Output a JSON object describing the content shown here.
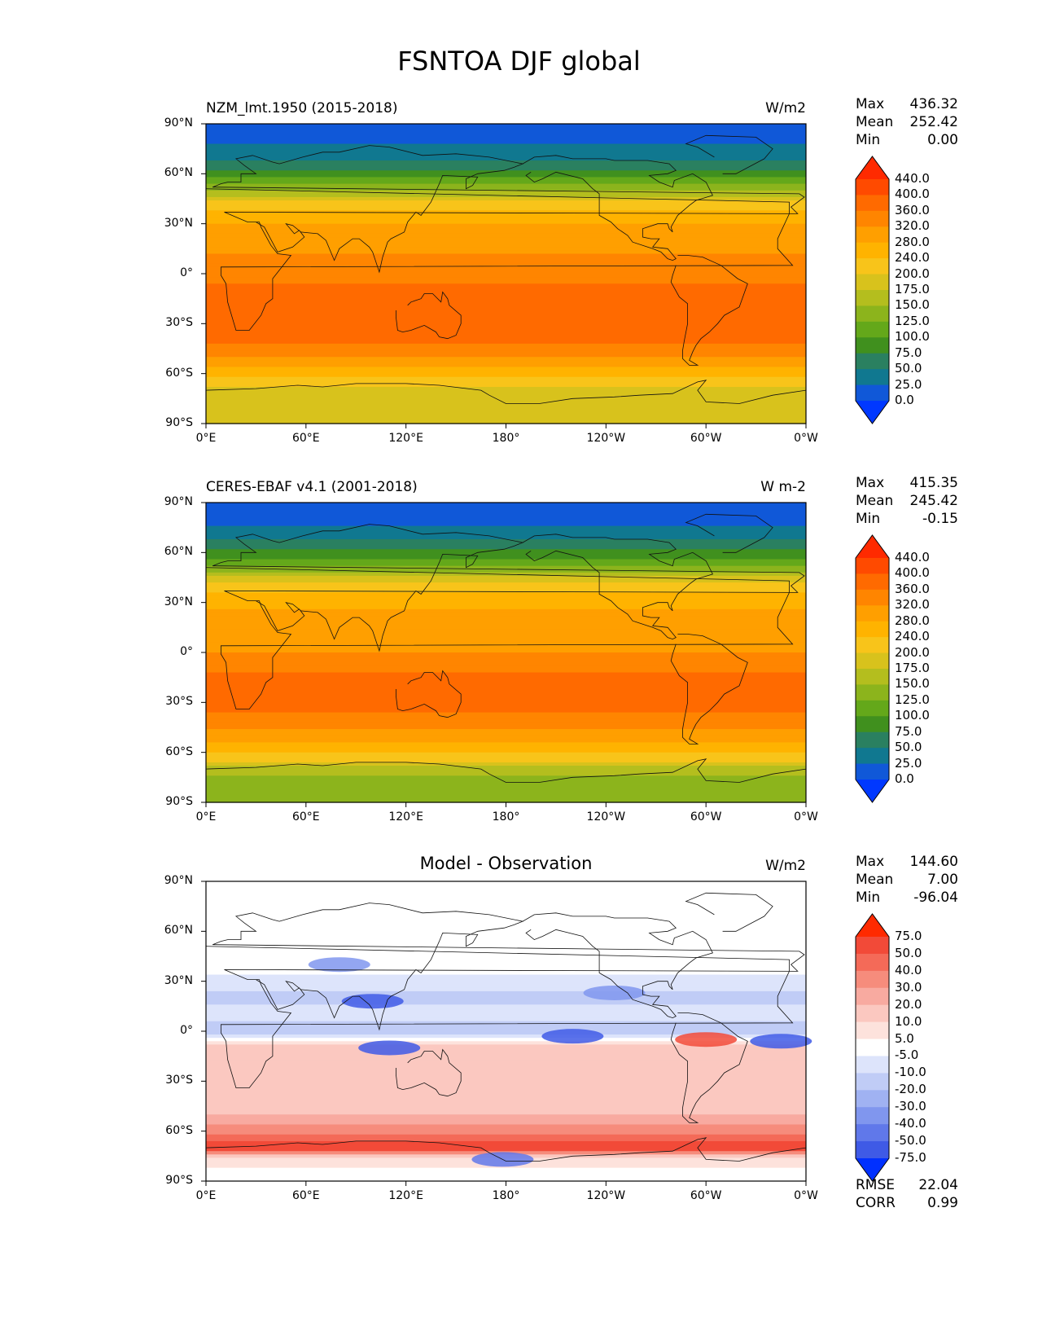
{
  "figure_title": "FSNTOA DJF global",
  "chart_data": [
    {
      "type": "heatmap",
      "panel": "test",
      "title": "NZM_lmt.1950 (2015-2018)",
      "units": "W/m2",
      "x_ticks": [
        "0°E",
        "60°E",
        "120°E",
        "180°",
        "120°W",
        "60°W",
        "0°W"
      ],
      "y_ticks": [
        "90°N",
        "60°N",
        "30°N",
        "0°",
        "30°S",
        "60°S",
        "90°S"
      ],
      "stats": {
        "max_label": "Max",
        "max": "436.32",
        "mean_label": "Mean",
        "mean": "252.42",
        "min_label": "Min",
        "min": "0.00"
      },
      "levels": [
        "440.0",
        "400.0",
        "360.0",
        "320.0",
        "280.0",
        "240.0",
        "200.0",
        "175.0",
        "150.0",
        "125.0",
        "100.0",
        "75.0",
        "50.0",
        "25.0",
        "0.0"
      ],
      "colors": [
        "#ff2a00",
        "#ff4a00",
        "#ff6a00",
        "#ff8500",
        "#ff9f00",
        "#ffb300",
        "#f8c41a",
        "#d8c21c",
        "#b4be1e",
        "#8cb41c",
        "#64a81a",
        "#40901e",
        "#2a8060",
        "#107890",
        "#1058d8",
        "#0038ff"
      ],
      "lat_profile": [
        [
          90,
          0
        ],
        [
          80,
          20
        ],
        [
          70,
          45
        ],
        [
          60,
          85
        ],
        [
          50,
          150
        ],
        [
          40,
          230
        ],
        [
          30,
          280
        ],
        [
          20,
          305
        ],
        [
          10,
          325
        ],
        [
          0,
          345
        ],
        [
          -10,
          368
        ],
        [
          -20,
          385
        ],
        [
          -30,
          390
        ],
        [
          -40,
          365
        ],
        [
          -50,
          320
        ],
        [
          -60,
          250
        ],
        [
          -70,
          190
        ],
        [
          -80,
          180
        ],
        [
          -90,
          178
        ]
      ]
    },
    {
      "type": "heatmap",
      "panel": "reference",
      "title": "CERES-EBAF v4.1 (2001-2018)",
      "units": "W m-2",
      "x_ticks": [
        "0°E",
        "60°E",
        "120°E",
        "180°",
        "120°W",
        "60°W",
        "0°W"
      ],
      "y_ticks": [
        "90°N",
        "60°N",
        "30°N",
        "0°",
        "30°S",
        "60°S",
        "90°S"
      ],
      "stats": {
        "max_label": "Max",
        "max": "415.35",
        "mean_label": "Mean",
        "mean": "245.42",
        "min_label": "Min",
        "min": "-0.15"
      },
      "levels": [
        "440.0",
        "400.0",
        "360.0",
        "320.0",
        "280.0",
        "240.0",
        "200.0",
        "175.0",
        "150.0",
        "125.0",
        "100.0",
        "75.0",
        "50.0",
        "25.0",
        "0.0"
      ],
      "colors": [
        "#ff2a00",
        "#ff4a00",
        "#ff6a00",
        "#ff8500",
        "#ff9f00",
        "#ffb300",
        "#f8c41a",
        "#d8c21c",
        "#b4be1e",
        "#8cb41c",
        "#64a81a",
        "#40901e",
        "#2a8060",
        "#107890",
        "#1058d8",
        "#0038ff"
      ],
      "lat_profile": [
        [
          90,
          0
        ],
        [
          80,
          18
        ],
        [
          70,
          40
        ],
        [
          60,
          80
        ],
        [
          50,
          140
        ],
        [
          40,
          215
        ],
        [
          30,
          270
        ],
        [
          20,
          290
        ],
        [
          10,
          300
        ],
        [
          0,
          320
        ],
        [
          -10,
          355
        ],
        [
          -20,
          372
        ],
        [
          -30,
          375
        ],
        [
          -40,
          350
        ],
        [
          -50,
          300
        ],
        [
          -60,
          240
        ],
        [
          -70,
          160
        ],
        [
          -80,
          135
        ],
        [
          -90,
          130
        ]
      ]
    },
    {
      "type": "heatmap",
      "panel": "difference",
      "title": "Model - Observation",
      "units": "W/m2",
      "x_ticks": [
        "0°E",
        "60°E",
        "120°E",
        "180°",
        "120°W",
        "60°W",
        "0°W"
      ],
      "y_ticks": [
        "90°N",
        "60°N",
        "30°N",
        "0°",
        "30°S",
        "60°S",
        "90°S"
      ],
      "stats": {
        "max_label": "Max",
        "max": "144.60",
        "mean_label": "Mean",
        "mean": "7.00",
        "min_label": "Min",
        "min": "-96.04"
      },
      "levels": [
        "75.0",
        "50.0",
        "40.0",
        "30.0",
        "20.0",
        "10.0",
        "5.0",
        "-5.0",
        "-10.0",
        "-20.0",
        "-30.0",
        "-40.0",
        "-50.0",
        "-75.0"
      ],
      "colors": [
        "#ff2a00",
        "#f24a38",
        "#f46a58",
        "#f68c7c",
        "#f8aaa0",
        "#fbc8c0",
        "#fde2dc",
        "#ffffff",
        "#dde4fb",
        "#c0ccf6",
        "#a0b2f2",
        "#8096ee",
        "#6078ea",
        "#3f5ae6",
        "#0030ff"
      ],
      "lat_profile": [
        [
          90,
          0
        ],
        [
          60,
          2
        ],
        [
          45,
          4
        ],
        [
          30,
          -8
        ],
        [
          20,
          -12
        ],
        [
          10,
          -6
        ],
        [
          0,
          -15
        ],
        [
          -10,
          18
        ],
        [
          -20,
          12
        ],
        [
          -30,
          10
        ],
        [
          -40,
          15
        ],
        [
          -50,
          20
        ],
        [
          -60,
          35
        ],
        [
          -70,
          60
        ],
        [
          -75,
          10
        ],
        [
          -90,
          0
        ]
      ],
      "extra_stats": {
        "rmse_label": "RMSE",
        "rmse": "22.04",
        "corr_label": "CORR",
        "corr": "0.99"
      }
    }
  ]
}
